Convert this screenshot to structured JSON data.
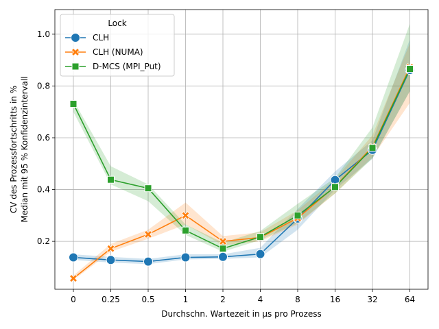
{
  "chart_data": {
    "type": "line",
    "xlabel": "Durchschn. Wartezeit in µs pro Prozess",
    "ylabel_line1": "CV des Prozessfortschritts in %",
    "ylabel_line2": "Median mit 95 % Konfidenzintervall",
    "categories": [
      "0",
      "0.25",
      "0.5",
      "1",
      "2",
      "4",
      "8",
      "16",
      "32",
      "64"
    ],
    "ylim": [
      0.015,
      1.095
    ],
    "yticks": [
      0.2,
      0.4,
      0.6,
      0.8,
      1.0
    ],
    "ytick_labels": [
      "0.2",
      "0.4",
      "0.6",
      "0.8",
      "1.0"
    ],
    "grid": true,
    "legend": {
      "title": "Lock",
      "placement": "top-left"
    },
    "series": [
      {
        "name": "CLH",
        "color": "#1f77b4",
        "marker": "circle",
        "values": [
          0.138,
          0.128,
          0.122,
          0.138,
          0.14,
          0.151,
          0.288,
          0.437,
          0.553,
          0.862
        ],
        "ci_low": [
          0.128,
          0.118,
          0.112,
          0.13,
          0.132,
          0.138,
          0.245,
          0.4,
          0.52,
          0.78
        ],
        "ci_high": [
          0.15,
          0.14,
          0.132,
          0.15,
          0.15,
          0.175,
          0.325,
          0.47,
          0.59,
          0.98
        ]
      },
      {
        "name": "CLH (NUMA)",
        "color": "#ff7f0e",
        "marker": "x",
        "values": [
          0.057,
          0.172,
          0.227,
          0.3,
          0.2,
          0.215,
          0.29,
          0.412,
          0.565,
          0.872
        ],
        "ci_low": [
          0.05,
          0.16,
          0.21,
          0.265,
          0.185,
          0.2,
          0.265,
          0.385,
          0.525,
          0.735
        ],
        "ci_high": [
          0.068,
          0.19,
          0.245,
          0.35,
          0.22,
          0.235,
          0.32,
          0.44,
          0.61,
          0.965
        ]
      },
      {
        "name": "D-MCS (MPI_Put)",
        "color": "#2ca02c",
        "marker": "square",
        "values": [
          0.731,
          0.438,
          0.405,
          0.242,
          0.172,
          0.217,
          0.3,
          0.41,
          0.561,
          0.866
        ],
        "ci_low": [
          0.7,
          0.42,
          0.355,
          0.225,
          0.16,
          0.205,
          0.27,
          0.385,
          0.52,
          0.78
        ],
        "ci_high": [
          0.745,
          0.49,
          0.42,
          0.265,
          0.195,
          0.24,
          0.345,
          0.445,
          0.64,
          1.04
        ]
      }
    ]
  }
}
